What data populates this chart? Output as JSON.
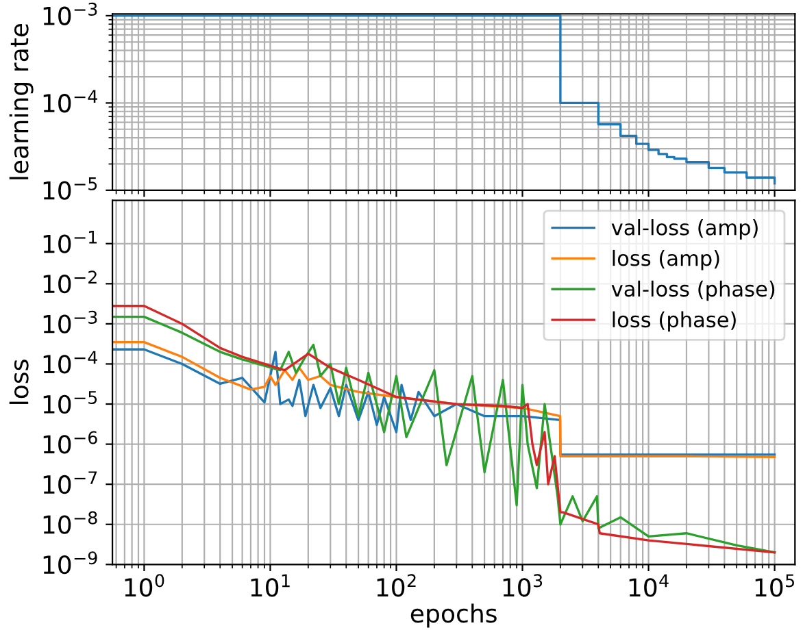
{
  "chart_data": [
    {
      "type": "step",
      "ylabel": "learning rate",
      "log": "xy",
      "grid": true,
      "tick_labels": "y",
      "xlim": [
        0.56,
        145000
      ],
      "xticks": [
        {
          "value": 1,
          "label": null
        },
        {
          "value": 10,
          "label": null
        },
        {
          "value": 100,
          "label": null
        },
        {
          "value": 1000,
          "label": null
        },
        {
          "value": 10000,
          "label": null
        },
        {
          "value": 100000,
          "label": null
        }
      ],
      "ylim": [
        1e-05,
        0.00105
      ],
      "yticks": [
        {
          "value": 1e-05,
          "label": "10$^{−5}$"
        },
        {
          "value": 0.0001,
          "label": "10$^{−4}$"
        },
        {
          "value": 0.001,
          "label": "10$^{−3}$"
        }
      ],
      "series": [
        {
          "color": "#1f77b4",
          "x": [
            0.56,
            2000,
            4000,
            6000,
            8000,
            10000,
            12000,
            14000,
            16000,
            20000,
            30000,
            40000,
            60000,
            100000
          ],
          "values": [
            0.001,
            0.0001,
            5.7e-05,
            4.2e-05,
            3.4e-05,
            2.9e-05,
            2.6e-05,
            2.4e-05,
            2.3e-05,
            2.1e-05,
            1.8e-05,
            1.6e-05,
            1.4e-05,
            1.2e-05
          ]
        }
      ]
    },
    {
      "type": "line",
      "xlabel": "epochs",
      "ylabel": "loss",
      "log": "xy",
      "grid": true,
      "legend": "top right",
      "xlim": [
        0.56,
        145000
      ],
      "xticks": [
        {
          "value": 1,
          "label": "10$^{0}$"
        },
        {
          "value": 10,
          "label": "10$^{1}$"
        },
        {
          "value": 100,
          "label": "10$^{2}$"
        },
        {
          "value": 1000,
          "label": "10$^{3}$"
        },
        {
          "value": 10000,
          "label": "10$^{4}$"
        },
        {
          "value": 100000,
          "label": "10$^{5}$"
        }
      ],
      "ylim": [
        1e-09,
        1.2
      ],
      "yticks": [
        {
          "value": 1e-09,
          "label": "10$^{−9}$"
        },
        {
          "value": 1e-08,
          "label": "10$^{−8}$"
        },
        {
          "value": 1e-07,
          "label": "10$^{−7}$"
        },
        {
          "value": 1e-06,
          "label": "10$^{−6}$"
        },
        {
          "value": 1e-05,
          "label": "10$^{−5}$"
        },
        {
          "value": 0.0001,
          "label": "10$^{−4}$"
        },
        {
          "value": 0.001,
          "label": "10$^{−3}$"
        },
        {
          "value": 0.01,
          "label": "10$^{−2}$"
        },
        {
          "value": 0.1,
          "label": "10$^{−1}$"
        }
      ],
      "series": [
        {
          "name": "val-loss (amp)",
          "color": "#1f77b4",
          "x": [
            0.56,
            1,
            2,
            4,
            6,
            9,
            11,
            12,
            14,
            15,
            17,
            19,
            22,
            25,
            30,
            35,
            40,
            50,
            60,
            70,
            80,
            100,
            110,
            130,
            150,
            200,
            300,
            500,
            1000,
            1990,
            2000,
            5000,
            20000,
            100000
          ],
          "values": [
            0.00023,
            0.00023,
            0.0001,
            3.2e-05,
            4.5e-05,
            1.1e-05,
            0.0002,
            1e-05,
            1.3e-05,
            9e-06,
            4e-05,
            5e-06,
            3e-05,
            8e-06,
            2.5e-05,
            5e-06,
            3e-05,
            4e-06,
            2e-05,
            3e-06,
            1.5e-05,
            2e-06,
            3e-05,
            4e-06,
            2e-05,
            5e-06,
            1e-05,
            5e-06,
            5e-06,
            4e-06,
            5.5e-07,
            5.5e-07,
            5.5e-07,
            5.5e-07
          ]
        },
        {
          "name": "loss (amp)",
          "color": "#ff7f0e",
          "x": [
            0.56,
            1,
            2,
            4,
            7,
            9,
            10,
            11,
            13,
            15,
            17,
            20,
            25,
            30,
            50,
            100,
            300,
            1000,
            1990,
            2000,
            5000,
            20000,
            100000
          ],
          "values": [
            0.00035,
            0.00035,
            0.00015,
            4.5e-05,
            2.3e-05,
            2.7e-05,
            5e-05,
            3e-05,
            7e-05,
            4e-05,
            8e-05,
            4e-05,
            5e-05,
            3e-05,
            2e-05,
            1.5e-05,
            1e-05,
            8e-06,
            5e-06,
            5e-07,
            5e-07,
            5e-07,
            4.8e-07
          ]
        },
        {
          "name": "val-loss (phase)",
          "color": "#2ca02c",
          "x": [
            0.56,
            1,
            2,
            4,
            6,
            12,
            14,
            16,
            19,
            22,
            25,
            30,
            35,
            40,
            50,
            60,
            80,
            100,
            120,
            200,
            250,
            400,
            500,
            700,
            900,
            1000,
            1100,
            1300,
            1500,
            1900,
            2000,
            2500,
            3000,
            3900,
            4000,
            6000,
            10000,
            20000,
            50000,
            100000
          ],
          "values": [
            0.0015,
            0.0015,
            0.0006,
            0.0002,
            0.00013,
            7e-05,
            0.0002,
            6e-05,
            0.00015,
            0.0003,
            5e-05,
            0.0001,
            1e-05,
            8e-05,
            5e-06,
            6e-05,
            2e-06,
            5e-05,
            1.5e-06,
            7e-05,
            3e-07,
            5e-05,
            2e-07,
            4e-05,
            3e-08,
            3e-05,
            1e-06,
            8e-08,
            1e-05,
            5e-08,
            1e-08,
            5e-08,
            1.2e-08,
            5e-08,
            8e-09,
            1.5e-08,
            5e-09,
            6e-09,
            3e-09,
            2e-09
          ]
        },
        {
          "name": "loss (phase)",
          "color": "#d62728",
          "x": [
            0.56,
            1,
            2,
            4,
            6,
            13,
            20,
            30,
            50,
            100,
            300,
            700,
            1000,
            1100,
            1200,
            1300,
            1500,
            1600,
            1800,
            2000,
            2100,
            4000,
            4100,
            10000,
            100000
          ],
          "values": [
            0.0028,
            0.0028,
            0.001,
            0.00025,
            0.00015,
            7e-05,
            0.00018,
            8e-05,
            4e-05,
            1.5e-05,
            1e-05,
            9e-06,
            8e-06,
            1e-05,
            1e-06,
            3e-07,
            2e-06,
            1e-07,
            5e-07,
            2e-08,
            2e-08,
            1e-08,
            6e-09,
            4e-09,
            2e-09
          ]
        }
      ]
    }
  ]
}
